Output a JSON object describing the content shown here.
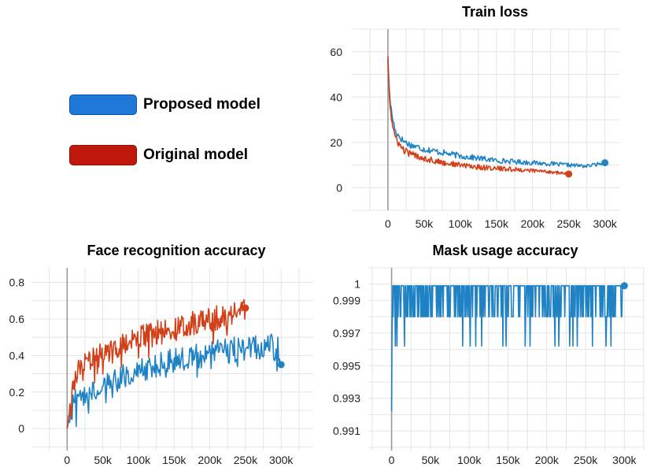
{
  "legend": {
    "entries": [
      {
        "label": "Proposed model",
        "color": "#1f77d8"
      },
      {
        "label": "Original model",
        "color": "#c0180b"
      }
    ]
  },
  "colors": {
    "proposed_line": "#1f82c4",
    "original_line": "#d2401a",
    "gridline": "#e4e4e4",
    "zero_axis": "#9a9a9a"
  },
  "chart_data": [
    {
      "type": "line",
      "title": "Train loss",
      "xlabel": "",
      "ylabel": "",
      "xlim": [
        -50000,
        320000
      ],
      "ylim": [
        -10,
        70
      ],
      "xticks": [
        0,
        50000,
        100000,
        150000,
        200000,
        250000,
        300000
      ],
      "xtick_labels": [
        "0",
        "50k",
        "100k",
        "150k",
        "200k",
        "250k",
        "300k"
      ],
      "yticks": [
        0,
        20,
        40,
        60
      ],
      "ytick_labels": [
        "0",
        "20",
        "40",
        "60"
      ],
      "grid": true,
      "series": [
        {
          "name": "Proposed model",
          "x": [
            0,
            2000,
            5000,
            10000,
            20000,
            30000,
            50000,
            75000,
            100000,
            125000,
            150000,
            175000,
            200000,
            225000,
            250000,
            275000,
            300000
          ],
          "y": [
            56,
            42,
            33,
            25,
            21,
            19,
            17,
            15.5,
            14,
            13,
            12,
            11.5,
            11,
            10.5,
            10,
            9.5,
            11
          ]
        },
        {
          "name": "Original model",
          "x": [
            0,
            2000,
            5000,
            10000,
            20000,
            30000,
            50000,
            75000,
            100000,
            125000,
            150000,
            175000,
            200000,
            225000,
            250000
          ],
          "y": [
            58,
            40,
            30,
            22,
            17,
            15,
            13,
            11,
            10,
            9,
            8.5,
            8,
            7.5,
            7,
            6
          ]
        }
      ]
    },
    {
      "type": "line",
      "title": "Face recognition accuracy",
      "xlabel": "",
      "ylabel": "",
      "xlim": [
        -50000,
        345000
      ],
      "ylim": [
        -0.12,
        0.88
      ],
      "xticks": [
        0,
        50000,
        100000,
        150000,
        200000,
        250000,
        300000
      ],
      "xtick_labels": [
        "0",
        "50k",
        "100k",
        "150k",
        "200k",
        "250k",
        "300k"
      ],
      "yticks": [
        0,
        0.2,
        0.4,
        0.6,
        0.8
      ],
      "ytick_labels": [
        "0",
        "0.2",
        "0.4",
        "0.6",
        "0.8"
      ],
      "grid": true,
      "series": [
        {
          "name": "Proposed model",
          "x": [
            0,
            5000,
            10000,
            20000,
            30000,
            50000,
            75000,
            100000,
            125000,
            150000,
            175000,
            200000,
            225000,
            250000,
            275000,
            295000,
            300000
          ],
          "y": [
            0,
            0.1,
            0.14,
            0.18,
            0.21,
            0.24,
            0.28,
            0.31,
            0.34,
            0.37,
            0.39,
            0.41,
            0.43,
            0.44,
            0.45,
            0.46,
            0.35
          ]
        },
        {
          "name": "Original model",
          "x": [
            0,
            5000,
            10000,
            20000,
            30000,
            50000,
            75000,
            100000,
            125000,
            150000,
            175000,
            200000,
            225000,
            250000
          ],
          "y": [
            0,
            0.18,
            0.26,
            0.33,
            0.37,
            0.42,
            0.46,
            0.49,
            0.52,
            0.55,
            0.58,
            0.6,
            0.62,
            0.66
          ]
        }
      ]
    },
    {
      "type": "line",
      "title": "Mask usage accuracy",
      "xlabel": "",
      "ylabel": "",
      "xlim": [
        -30000,
        325000
      ],
      "ylim": [
        0.9898,
        1.001
      ],
      "xticks": [
        0,
        50000,
        100000,
        150000,
        200000,
        250000,
        300000
      ],
      "xtick_labels": [
        "0",
        "50k",
        "100k",
        "150k",
        "200k",
        "250k",
        "300k"
      ],
      "yticks": [
        0.991,
        0.993,
        0.995,
        0.997,
        0.999,
        1
      ],
      "ytick_labels": [
        "0.991",
        "0.993",
        "0.995",
        "0.997",
        "0.999",
        "1"
      ],
      "grid": true,
      "series": [
        {
          "name": "Proposed model",
          "x": [
            0,
            300000
          ],
          "y": [
            0.9922,
            0.9999
          ]
        }
      ]
    }
  ]
}
